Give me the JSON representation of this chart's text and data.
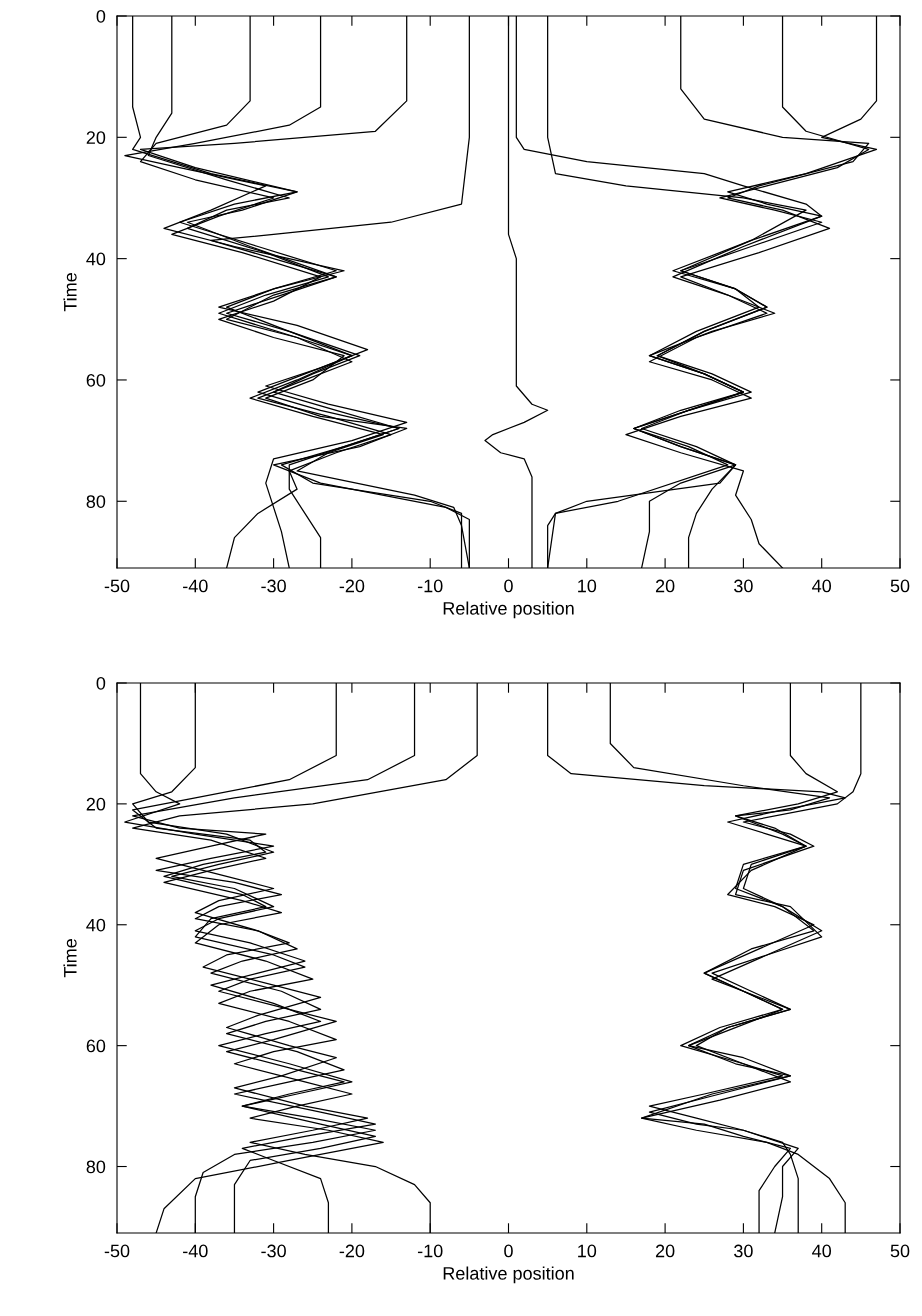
{
  "chart_data": [
    {
      "type": "line",
      "xlabel": "Relative position",
      "ylabel": "Time",
      "xlim": [
        -50,
        50
      ],
      "xticks": [
        -50,
        -40,
        -30,
        -20,
        -10,
        0,
        10,
        20,
        30,
        40,
        50
      ],
      "ylim": [
        91,
        0
      ],
      "yticks": [
        0,
        20,
        40,
        60,
        80
      ],
      "grid": false,
      "line_style": "solid",
      "marker": "none",
      "series": [
        {
          "color": "#000000",
          "x": [
            -48,
            -48,
            -47,
            -48,
            -38,
            -27,
            -35,
            -42,
            -32,
            -22,
            -30,
            -36,
            -28,
            -19,
            -25,
            -30,
            -22,
            -14,
            -21,
            -29,
            -25,
            -10,
            -6,
            -6
          ],
          "values": [
            0,
            15,
            20,
            22,
            26,
            29,
            31,
            34,
            38,
            42,
            45,
            48,
            52,
            56,
            59,
            62,
            65,
            68,
            71,
            74,
            77,
            80,
            82,
            91
          ]
        },
        {
          "color": "#000000",
          "x": [
            -43,
            -43,
            -45,
            -46,
            -36,
            -28,
            -36,
            -41,
            -31,
            -23,
            -31,
            -37,
            -27,
            -20,
            -26,
            -32,
            -23,
            -15,
            -22,
            -28,
            -27,
            -32,
            -35,
            -36
          ],
          "values": [
            0,
            16,
            20,
            23,
            27,
            30,
            32,
            35,
            39,
            43,
            46,
            49,
            53,
            57,
            60,
            63,
            66,
            69,
            72,
            75,
            78,
            82,
            86,
            91
          ]
        },
        {
          "color": "#000000",
          "x": [
            -33,
            -33,
            -36,
            -45,
            -47,
            -40,
            -30,
            -37,
            -43,
            -34,
            -24,
            -30,
            -37,
            -30,
            -21,
            -25,
            -31,
            -24,
            -13,
            -19,
            -30,
            -24,
            -8,
            -5,
            -5
          ],
          "values": [
            0,
            14,
            18,
            21,
            24,
            27,
            30,
            33,
            36,
            39,
            43,
            47,
            50,
            53,
            56,
            60,
            63,
            66,
            68,
            71,
            74,
            77,
            81,
            83,
            91
          ]
        },
        {
          "color": "#000000",
          "x": [
            -24,
            -24,
            -28,
            -40,
            -49,
            -42,
            -31,
            -38,
            -44,
            -35,
            -21,
            -30,
            -37,
            -27,
            -18,
            -24,
            -31,
            -23,
            -13,
            -20,
            -30,
            -31,
            -30,
            -29,
            -28
          ],
          "values": [
            0,
            15,
            18,
            21,
            23,
            25,
            28,
            32,
            35,
            38,
            42,
            45,
            48,
            51,
            55,
            58,
            61,
            64,
            67,
            70,
            73,
            77,
            81,
            85,
            91
          ]
        },
        {
          "color": "#000000",
          "x": [
            -13,
            -13,
            -17,
            -35,
            -47,
            -40,
            -27,
            -34,
            -41,
            -33,
            -22,
            -29,
            -36,
            -28,
            -20,
            -26,
            -32,
            -24,
            -14,
            -21,
            -28,
            -28,
            -26,
            -24,
            -24
          ],
          "values": [
            0,
            14,
            19,
            21,
            22,
            25,
            29,
            32,
            34,
            38,
            43,
            46,
            49,
            52,
            56,
            59,
            62,
            65,
            68,
            71,
            74,
            78,
            82,
            86,
            91
          ]
        },
        {
          "color": "#000000",
          "x": [
            -5,
            -5,
            -6,
            -15,
            -30,
            -38,
            -30,
            -22,
            -30,
            -36,
            -27,
            -20,
            -27,
            -33,
            -25,
            -16,
            -23,
            -27,
            -12,
            -7,
            -6,
            -5
          ],
          "values": [
            0,
            20,
            31,
            34,
            36,
            37,
            40,
            43,
            46,
            50,
            53,
            56,
            60,
            63,
            66,
            69,
            72,
            75,
            79,
            81,
            84,
            91
          ]
        },
        {
          "color": "#000000",
          "x": [
            0,
            0,
            1,
            1,
            3,
            5,
            2,
            -2,
            -3,
            -1,
            2,
            3,
            3
          ],
          "values": [
            0,
            36,
            40,
            61,
            64,
            65,
            67,
            69,
            70,
            72,
            73,
            76,
            91
          ]
        },
        {
          "color": "#000000",
          "x": [
            47,
            47,
            45,
            40,
            47,
            38,
            28,
            33,
            40,
            30,
            21,
            28,
            34,
            26,
            18,
            25,
            30,
            23,
            16,
            22,
            29,
            27,
            10,
            6,
            5
          ],
          "values": [
            0,
            14,
            17,
            20,
            22,
            26,
            29,
            31,
            33,
            38,
            43,
            46,
            49,
            52,
            56,
            59,
            62,
            65,
            68,
            71,
            74,
            77,
            80,
            82,
            91
          ]
        },
        {
          "color": "#000000",
          "x": [
            35,
            35,
            38,
            46,
            42,
            33,
            27,
            34,
            40,
            31,
            22,
            29,
            33,
            25,
            19,
            25,
            30,
            22,
            16,
            22,
            29,
            22,
            18,
            18,
            17
          ],
          "values": [
            0,
            15,
            19,
            22,
            25,
            28,
            30,
            32,
            34,
            38,
            42,
            45,
            48,
            52,
            56,
            59,
            62,
            65,
            68,
            71,
            74,
            77,
            80,
            85,
            91
          ]
        },
        {
          "color": "#000000",
          "x": [
            22,
            22,
            25,
            35,
            46,
            44,
            32,
            28,
            35,
            41,
            32,
            22,
            28,
            33,
            24,
            18,
            26,
            31,
            22,
            15,
            22,
            30,
            29,
            31,
            32,
            35
          ],
          "values": [
            0,
            12,
            17,
            20,
            21,
            24,
            28,
            30,
            32,
            35,
            39,
            43,
            46,
            49,
            53,
            57,
            60,
            63,
            66,
            69,
            72,
            75,
            79,
            83,
            87,
            91
          ]
        },
        {
          "color": "#000000",
          "x": [
            5,
            5,
            6,
            15,
            30,
            38,
            31,
            21,
            29,
            32,
            24,
            18,
            25,
            30,
            23,
            16,
            23,
            28,
            14,
            6,
            5,
            5
          ],
          "values": [
            0,
            20,
            26,
            28,
            30,
            32,
            37,
            42,
            45,
            48,
            52,
            56,
            59,
            62,
            65,
            68,
            71,
            74,
            80,
            82,
            84,
            91
          ]
        },
        {
          "color": "#000000",
          "x": [
            1,
            1,
            2,
            10,
            25,
            30,
            38,
            40,
            31,
            22,
            29,
            33,
            25,
            19,
            26,
            31,
            23,
            17,
            24,
            29,
            26,
            24,
            23,
            23
          ],
          "values": [
            0,
            20,
            22,
            24,
            26,
            28,
            31,
            33,
            37,
            42,
            45,
            48,
            52,
            56,
            59,
            62,
            65,
            68,
            71,
            74,
            78,
            82,
            86,
            91
          ]
        }
      ]
    },
    {
      "type": "line",
      "xlabel": "Relative position",
      "ylabel": "Time",
      "xlim": [
        -50,
        50
      ],
      "xticks": [
        -50,
        -40,
        -30,
        -20,
        -10,
        0,
        10,
        20,
        30,
        40,
        50
      ],
      "ylim": [
        91,
        0
      ],
      "yticks": [
        0,
        20,
        40,
        60,
        80
      ],
      "grid": false,
      "line_style": "solid",
      "marker": "none",
      "series": [
        {
          "color": "#000000",
          "x": [
            -47,
            -47,
            -45,
            -42,
            -49,
            -40,
            -30,
            -38,
            -45,
            -35,
            -29,
            -37,
            -40,
            -32,
            -28,
            -36,
            -39,
            -30,
            -24,
            -32,
            -36,
            -28,
            -22,
            -29,
            -35,
            -26,
            -18,
            -25,
            -33,
            -26,
            -17,
            -12,
            -10,
            -10
          ],
          "values": [
            0,
            15,
            18,
            20,
            23,
            25,
            27,
            29,
            31,
            33,
            35,
            37,
            39,
            41,
            43,
            45,
            47,
            50,
            52,
            55,
            57,
            60,
            62,
            65,
            67,
            70,
            72,
            74,
            76,
            78,
            80,
            83,
            86,
            91
          ]
        },
        {
          "color": "#000000",
          "x": [
            -40,
            -40,
            -43,
            -48,
            -46,
            -36,
            -30,
            -37,
            -43,
            -35,
            -30,
            -37,
            -40,
            -33,
            -26,
            -32,
            -38,
            -30,
            -24,
            -31,
            -37,
            -28,
            -20,
            -27,
            -34,
            -25,
            -17,
            -25,
            -35,
            -39,
            -40,
            -40
          ],
          "values": [
            0,
            14,
            18,
            20,
            23,
            25,
            28,
            30,
            32,
            34,
            37,
            39,
            41,
            43,
            46,
            48,
            50,
            53,
            56,
            58,
            60,
            63,
            66,
            68,
            70,
            72,
            74,
            76,
            78,
            81,
            85,
            91
          ]
        },
        {
          "color": "#000000",
          "x": [
            -22,
            -22,
            -28,
            -40,
            -48,
            -45,
            -33,
            -31,
            -39,
            -44,
            -34,
            -31,
            -38,
            -40,
            -30,
            -26,
            -33,
            -37,
            -28,
            -22,
            -30,
            -36,
            -27,
            -21,
            -28,
            -34,
            -24,
            -17,
            -24,
            -33,
            -35,
            -35
          ],
          "values": [
            0,
            12,
            16,
            19,
            21,
            24,
            26,
            28,
            30,
            32,
            35,
            37,
            39,
            42,
            45,
            47,
            49,
            51,
            54,
            56,
            59,
            61,
            64,
            66,
            68,
            70,
            73,
            75,
            77,
            79,
            83,
            91
          ]
        },
        {
          "color": "#000000",
          "x": [
            -12,
            -12,
            -18,
            -35,
            -48,
            -42,
            -31,
            -38,
            -45,
            -36,
            -30,
            -37,
            -40,
            -32,
            -27,
            -34,
            -38,
            -29,
            -24,
            -31,
            -36,
            -27,
            -21,
            -28,
            -35,
            -24,
            -17,
            -26,
            -34,
            -30,
            -24,
            -23,
            -23
          ],
          "values": [
            0,
            12,
            16,
            19,
            22,
            24,
            25,
            27,
            29,
            32,
            34,
            36,
            38,
            41,
            44,
            46,
            48,
            51,
            54,
            56,
            58,
            61,
            64,
            66,
            68,
            71,
            73,
            75,
            77,
            79,
            82,
            86,
            91
          ]
        },
        {
          "color": "#000000",
          "x": [
            -4,
            -4,
            -8,
            -25,
            -42,
            -48,
            -38,
            -31,
            -38,
            -44,
            -34,
            -29,
            -37,
            -40,
            -31,
            -25,
            -33,
            -37,
            -28,
            -22,
            -30,
            -35,
            -26,
            -20,
            -27,
            -33,
            -23,
            -16,
            -28,
            -40,
            -44,
            -45
          ],
          "values": [
            0,
            12,
            16,
            20,
            22,
            24,
            26,
            29,
            31,
            33,
            36,
            38,
            40,
            43,
            46,
            49,
            51,
            53,
            56,
            59,
            61,
            63,
            66,
            68,
            70,
            72,
            74,
            76,
            79,
            82,
            87,
            91
          ]
        },
        {
          "color": "#000000",
          "x": [
            5,
            5,
            8,
            25,
            40,
            43,
            35,
            28,
            33,
            38,
            30,
            29,
            35,
            40,
            33,
            26,
            31,
            36,
            28,
            23,
            29,
            36,
            27,
            18,
            24,
            30,
            35,
            36,
            37,
            37
          ],
          "values": [
            0,
            12,
            15,
            17,
            18,
            19,
            21,
            23,
            25,
            27,
            30,
            34,
            37,
            41,
            45,
            48,
            51,
            54,
            57,
            60,
            63,
            65,
            68,
            71,
            73,
            74,
            76,
            78,
            82,
            91
          ]
        },
        {
          "color": "#000000",
          "x": [
            13,
            13,
            16,
            30,
            41,
            36,
            29,
            34,
            38,
            31,
            28,
            34,
            39,
            32,
            25,
            30,
            35,
            27,
            23,
            30,
            36,
            26,
            17,
            25,
            30,
            36,
            34,
            32,
            32
          ],
          "values": [
            0,
            10,
            14,
            17,
            19,
            21,
            22,
            24,
            27,
            31,
            35,
            37,
            40,
            44,
            48,
            51,
            54,
            58,
            60,
            62,
            65,
            68,
            72,
            73,
            75,
            77,
            80,
            84,
            91
          ]
        },
        {
          "color": "#000000",
          "x": [
            36,
            36,
            38,
            42,
            37,
            29,
            35,
            38,
            31,
            30,
            35,
            39,
            31,
            25,
            30,
            35,
            27,
            22,
            30,
            35,
            25,
            18,
            24,
            30,
            37,
            35,
            35,
            34
          ],
          "values": [
            0,
            12,
            15,
            18,
            20,
            22,
            25,
            27,
            30,
            34,
            37,
            41,
            44,
            48,
            51,
            54,
            57,
            60,
            63,
            65,
            68,
            70,
            72,
            74,
            77,
            80,
            85,
            91
          ]
        },
        {
          "color": "#000000",
          "x": [
            45,
            45,
            44,
            42,
            30,
            36,
            39,
            30,
            29,
            36,
            40,
            33,
            26,
            32,
            36,
            28,
            24,
            30,
            36,
            27,
            17,
            24,
            33,
            37,
            41,
            43,
            43
          ],
          "values": [
            0,
            15,
            18,
            20,
            23,
            25,
            27,
            31,
            35,
            37,
            42,
            45,
            49,
            52,
            54,
            57,
            60,
            63,
            66,
            69,
            72,
            74,
            76,
            78,
            82,
            86,
            91
          ]
        }
      ]
    }
  ]
}
